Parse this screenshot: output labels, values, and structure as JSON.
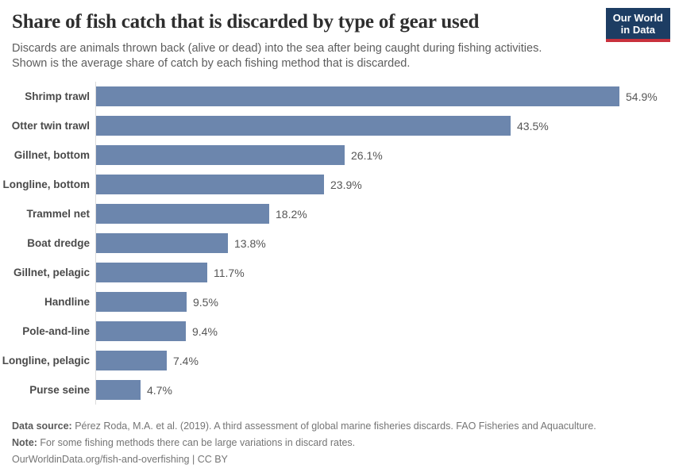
{
  "header": {
    "title": "Share of fish catch that is discarded by type of gear used",
    "subtitle_line1": "Discards are animals thrown back (alive or dead) into the sea after being caught during fishing activities.",
    "subtitle_line2": "Shown is the average share of catch by each fishing method that is discarded.",
    "logo": {
      "line1": "Our World",
      "line2": "in Data",
      "bg_color": "#1d3d63",
      "accent_color": "#c9313d"
    }
  },
  "chart_data": {
    "type": "bar",
    "orientation": "horizontal",
    "title": "Share of fish catch that is discarded by type of gear used",
    "categories": [
      "Shrimp trawl",
      "Otter twin trawl",
      "Gillnet, bottom",
      "Longline, bottom",
      "Trammel net",
      "Boat dredge",
      "Gillnet, pelagic",
      "Handline",
      "Pole-and-line",
      "Longline, pelagic",
      "Purse seine"
    ],
    "values": [
      54.9,
      43.5,
      26.1,
      23.9,
      18.2,
      13.8,
      11.7,
      9.5,
      9.4,
      7.4,
      4.7
    ],
    "value_labels": [
      "54.9%",
      "43.5%",
      "26.1%",
      "23.9%",
      "18.2%",
      "13.8%",
      "11.7%",
      "9.5%",
      "9.4%",
      "7.4%",
      "4.7%"
    ],
    "unit": "%",
    "xlim": [
      0,
      55
    ],
    "grid": false,
    "legend": "none",
    "bar_color": "#6c86ad",
    "axis_line_color": "#dcdcdc"
  },
  "footer": {
    "data_source_label": "Data source:",
    "data_source_text": " Pérez Roda, M.A. et al. (2019). A third assessment of global marine fisheries discards. FAO Fisheries and Aquaculture.",
    "note_label": "Note:",
    "note_text": " For some fishing methods there can be large variations in discard rates.",
    "url": "OurWorldinData.org/fish-and-overfishing",
    "separator": " | ",
    "license": "CC BY"
  }
}
